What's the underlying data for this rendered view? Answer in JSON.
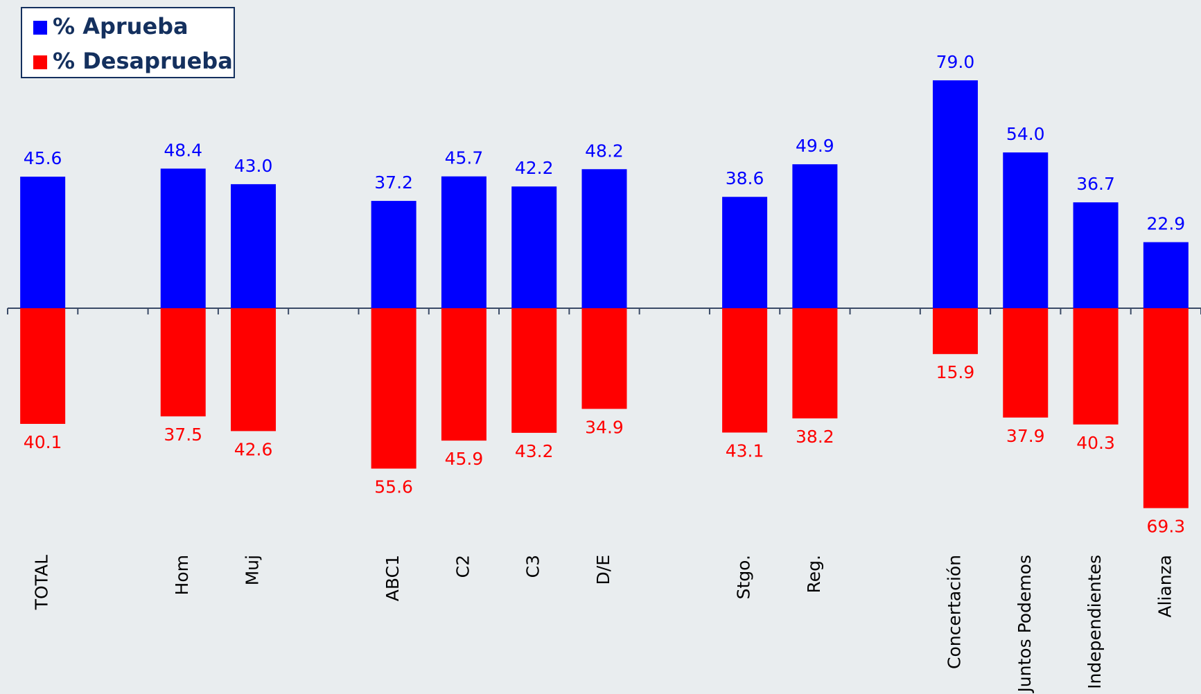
{
  "chart_data": {
    "type": "diverging_bar",
    "categories": [
      "TOTAL",
      null,
      "Hom",
      "Muj",
      null,
      "ABC1",
      "C2",
      "C3",
      "D/E",
      null,
      "Stgo.",
      "Reg.",
      null,
      "Concertación",
      "Juntos Podemos",
      "Independientes",
      "Alianza"
    ],
    "series": [
      {
        "name": "% Aprueba",
        "color": "#0000ff",
        "values": [
          45.6,
          null,
          48.4,
          43.0,
          null,
          37.2,
          45.7,
          42.2,
          48.2,
          null,
          38.6,
          49.9,
          null,
          79.0,
          54.0,
          36.7,
          22.9
        ],
        "value_labels": [
          "45.6",
          null,
          "48.4",
          "43.0",
          null,
          "37.2",
          "45.7",
          "42.2",
          "48.2",
          null,
          "38.6",
          "49.9",
          null,
          "79.0",
          "54.0",
          "36.7",
          "22.9"
        ]
      },
      {
        "name": "% Desaprueba",
        "color": "#ff0000",
        "values": [
          40.1,
          null,
          37.5,
          42.6,
          null,
          55.6,
          45.9,
          43.2,
          34.9,
          null,
          43.1,
          38.2,
          null,
          15.9,
          37.9,
          40.3,
          69.3
        ]
      }
    ],
    "ylim": [
      -85,
      85
    ]
  }
}
